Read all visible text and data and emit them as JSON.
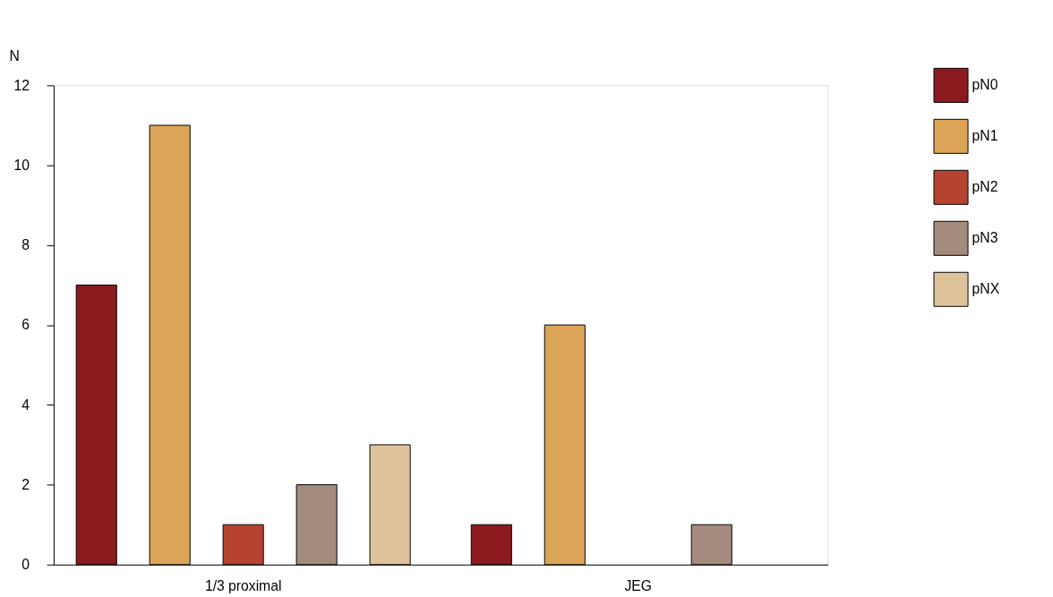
{
  "chart_data": {
    "type": "bar",
    "ylabel": "N",
    "categories": [
      "1/3 proximal",
      "JEG"
    ],
    "series": [
      {
        "name": "pN0",
        "color": "#8b1a1e",
        "values": [
          7,
          1
        ]
      },
      {
        "name": "pN1",
        "color": "#dba457",
        "values": [
          11,
          6
        ]
      },
      {
        "name": "pN2",
        "color": "#b5432f",
        "values": [
          1,
          null
        ]
      },
      {
        "name": "pN3",
        "color": "#a38b7d",
        "values": [
          2,
          1
        ]
      },
      {
        "name": "pNX",
        "color": "#dfc39b",
        "values": [
          3,
          null
        ]
      }
    ],
    "ylim": [
      0,
      12
    ],
    "yticks": [
      0,
      2,
      4,
      6,
      8,
      10,
      12
    ],
    "grid": false,
    "legend": "top right"
  }
}
